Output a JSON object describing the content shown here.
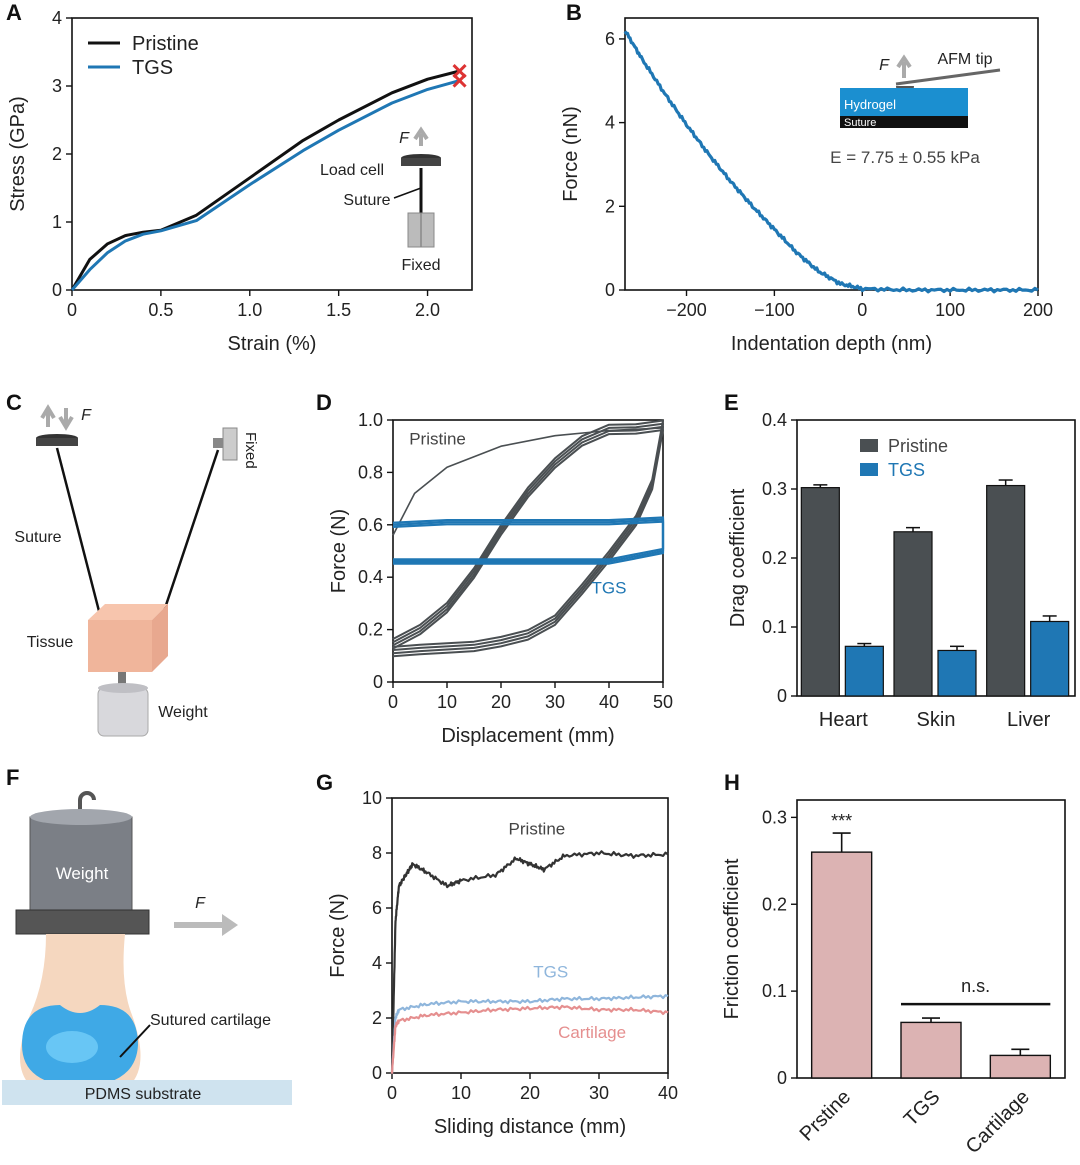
{
  "colors": {
    "pristine": "#4a4f52",
    "tgs": "#1f77b4",
    "tgs_light": "#8fb6dc",
    "cartilage": "#e58f8f",
    "bar_pink": "#dcb3b3",
    "black": "#111111",
    "hydrogel": "#1b8fd0"
  },
  "panels": {
    "A": {
      "letter": "A",
      "xlabel": "Strain (%)",
      "ylabel": "Stress (GPa)",
      "xticks": [
        "0",
        "0.5",
        "1.0",
        "1.5",
        "2.0"
      ],
      "yticks": [
        "0",
        "1",
        "2",
        "3",
        "4"
      ],
      "legend": [
        "Pristine",
        "TGS"
      ],
      "inset": {
        "force": "F",
        "load_cell": "Load cell",
        "suture": "Suture",
        "fixed": "Fixed"
      }
    },
    "B": {
      "letter": "B",
      "xlabel": "Indentation depth (nm)",
      "ylabel": "Force (nN)",
      "xticks": [
        "−200",
        "−100",
        "0",
        "100",
        "200"
      ],
      "yticks": [
        "0",
        "2",
        "4",
        "6"
      ],
      "inset": {
        "force": "F",
        "tip": "AFM tip",
        "hydrogel": "Hydrogel",
        "suture": "Suture",
        "modulus": "E = 7.75 ± 0.55 kPa"
      }
    },
    "C": {
      "letter": "C",
      "labels": {
        "force": "F",
        "fixed": "Fixed",
        "suture": "Suture",
        "tissue": "Tissue",
        "weight": "Weight"
      }
    },
    "D": {
      "letter": "D",
      "xlabel": "Displacement (mm)",
      "ylabel": "Force (N)",
      "xticks": [
        "0",
        "10",
        "20",
        "30",
        "40",
        "50"
      ],
      "yticks": [
        "0",
        "0.2",
        "0.4",
        "0.6",
        "0.8",
        "1.0"
      ],
      "annotations": [
        "Pristine",
        "TGS"
      ]
    },
    "E": {
      "letter": "E",
      "ylabel": "Drag coefficient",
      "xticks": [
        "Heart",
        "Skin",
        "Liver"
      ],
      "yticks": [
        "0",
        "0.1",
        "0.2",
        "0.3",
        "0.4"
      ],
      "legend": [
        "Pristine",
        "TGS"
      ]
    },
    "F": {
      "letter": "F",
      "labels": {
        "weight": "Weight",
        "force": "F",
        "sutured": "Sutured cartilage",
        "substrate": "PDMS substrate"
      }
    },
    "G": {
      "letter": "G",
      "xlabel": "Sliding distance (mm)",
      "ylabel": "Force (N)",
      "xticks": [
        "0",
        "10",
        "20",
        "30",
        "40"
      ],
      "yticks": [
        "0",
        "2",
        "4",
        "6",
        "8",
        "10"
      ],
      "annotations": [
        "Pristine",
        "TGS",
        "Cartilage"
      ]
    },
    "H": {
      "letter": "H",
      "ylabel": "Friction coefficient",
      "xticks": [
        "Prstine",
        "TGS",
        "Cartilage"
      ],
      "yticks": [
        "0",
        "0.1",
        "0.2",
        "0.3"
      ],
      "sig": "***",
      "ns": "n.s."
    }
  },
  "chart_data": [
    {
      "panel": "A",
      "type": "line",
      "xlabel": "Strain (%)",
      "ylabel": "Stress (GPa)",
      "xlim": [
        0,
        2.25
      ],
      "ylim": [
        0,
        4
      ],
      "series": [
        {
          "name": "Pristine",
          "x": [
            0,
            0.1,
            0.2,
            0.3,
            0.4,
            0.5,
            0.7,
            1.0,
            1.3,
            1.5,
            1.8,
            2.0,
            2.18
          ],
          "y": [
            0,
            0.45,
            0.68,
            0.8,
            0.85,
            0.88,
            1.1,
            1.65,
            2.2,
            2.5,
            2.9,
            3.1,
            3.22
          ]
        },
        {
          "name": "TGS",
          "x": [
            0,
            0.1,
            0.2,
            0.3,
            0.4,
            0.5,
            0.7,
            1.0,
            1.3,
            1.5,
            1.8,
            2.0,
            2.18
          ],
          "y": [
            0,
            0.3,
            0.55,
            0.72,
            0.82,
            0.87,
            1.02,
            1.55,
            2.05,
            2.35,
            2.75,
            2.95,
            3.08
          ]
        }
      ]
    },
    {
      "panel": "B",
      "type": "line",
      "xlabel": "Indentation depth (nm)",
      "ylabel": "Force (nN)",
      "xlim": [
        -270,
        200
      ],
      "ylim": [
        0,
        6.5
      ],
      "series": [
        {
          "x": [
            -270,
            -250,
            -225,
            -200,
            -175,
            -150,
            -125,
            -100,
            -75,
            -50,
            -25,
            0,
            50,
            100,
            150,
            200
          ],
          "y": [
            6.2,
            5.5,
            4.7,
            3.95,
            3.25,
            2.6,
            2.0,
            1.45,
            0.9,
            0.45,
            0.15,
            0.03,
            0,
            0,
            0,
            0
          ]
        }
      ]
    },
    {
      "panel": "D",
      "type": "line",
      "xlabel": "Displacement (mm)",
      "ylabel": "Force (N)",
      "xlim": [
        0,
        50
      ],
      "ylim": [
        0,
        1.0
      ],
      "series": [
        {
          "name": "Pristine",
          "x": [
            0,
            5,
            10,
            15,
            20,
            25,
            30,
            35,
            40,
            45,
            50,
            48,
            45,
            40,
            35,
            30,
            25,
            20,
            15,
            10,
            5,
            0
          ],
          "y": [
            0.15,
            0.2,
            0.28,
            0.42,
            0.58,
            0.72,
            0.84,
            0.92,
            0.96,
            0.97,
            0.98,
            0.75,
            0.62,
            0.48,
            0.35,
            0.24,
            0.18,
            0.15,
            0.14,
            0.13,
            0.12,
            0.12
          ]
        },
        {
          "name": "TGS",
          "x": [
            0,
            10,
            20,
            30,
            40,
            50,
            50,
            40,
            30,
            20,
            10,
            0
          ],
          "y": [
            0.6,
            0.61,
            0.61,
            0.61,
            0.61,
            0.62,
            0.5,
            0.46,
            0.46,
            0.46,
            0.46,
            0.46
          ]
        }
      ]
    },
    {
      "panel": "E",
      "type": "bar",
      "ylabel": "Drag coefficient",
      "categories": [
        "Heart",
        "Skin",
        "Liver"
      ],
      "ylim": [
        0,
        0.4
      ],
      "series": [
        {
          "name": "Pristine",
          "values": [
            0.302,
            0.238,
            0.305
          ],
          "errors": [
            0.004,
            0.006,
            0.008
          ]
        },
        {
          "name": "TGS",
          "values": [
            0.072,
            0.066,
            0.108
          ],
          "errors": [
            0.004,
            0.006,
            0.008
          ]
        }
      ]
    },
    {
      "panel": "G",
      "type": "line",
      "xlabel": "Sliding distance (mm)",
      "ylabel": "Force (N)",
      "xlim": [
        0,
        40
      ],
      "ylim": [
        0,
        10
      ],
      "series": [
        {
          "name": "Pristine",
          "x": [
            0,
            0.5,
            1,
            2,
            3,
            5,
            8,
            10,
            15,
            18,
            20,
            22,
            25,
            30,
            35,
            40
          ],
          "y": [
            0,
            5.5,
            6.8,
            7.2,
            7.6,
            7.3,
            6.8,
            7.0,
            7.2,
            7.8,
            7.6,
            7.4,
            7.9,
            8.0,
            7.9,
            7.95
          ]
        },
        {
          "name": "TGS",
          "x": [
            0,
            0.5,
            1,
            5,
            10,
            15,
            20,
            25,
            30,
            35,
            40
          ],
          "y": [
            0,
            2.0,
            2.3,
            2.5,
            2.6,
            2.6,
            2.6,
            2.7,
            2.7,
            2.75,
            2.8
          ]
        },
        {
          "name": "Cartilage",
          "x": [
            0,
            0.5,
            1,
            5,
            10,
            15,
            20,
            25,
            30,
            35,
            40
          ],
          "y": [
            0,
            1.7,
            1.9,
            2.1,
            2.2,
            2.3,
            2.35,
            2.4,
            2.3,
            2.3,
            2.2
          ]
        }
      ]
    },
    {
      "panel": "H",
      "type": "bar",
      "ylabel": "Friction coefficient",
      "categories": [
        "Prstine",
        "TGS",
        "Cartilage"
      ],
      "ylim": [
        0,
        0.32
      ],
      "values": [
        0.26,
        0.064,
        0.026
      ],
      "errors": [
        0.022,
        0.005,
        0.007
      ]
    }
  ]
}
